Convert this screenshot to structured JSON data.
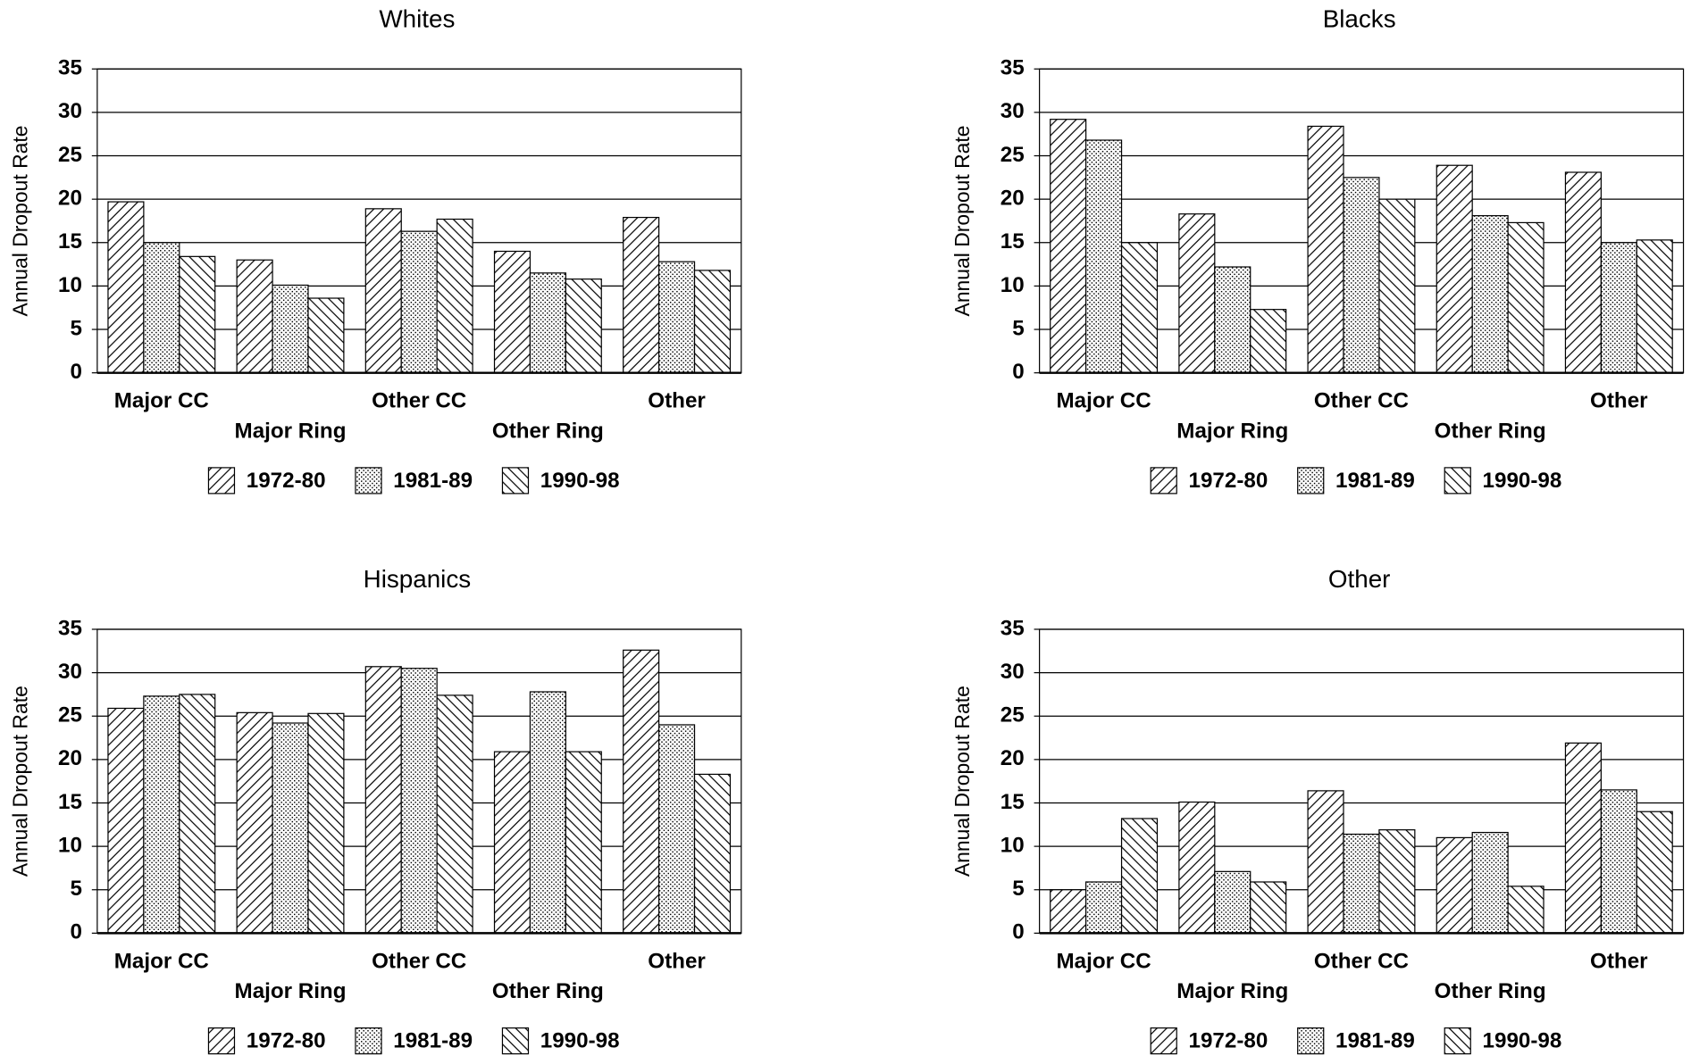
{
  "chart_data": [
    {
      "type": "bar",
      "title": "Whites",
      "y_label": "Annual Dropout Rate",
      "categories": [
        "Major CC",
        "Major Ring",
        "Other CC",
        "Other Ring",
        "Other"
      ],
      "series": [
        {
          "name": "1972-80",
          "pattern": "forward-hatch",
          "color": "#000000",
          "values": [
            19.7,
            13,
            18.9,
            14,
            17.9
          ]
        },
        {
          "name": "1981-89",
          "pattern": "dots",
          "color": "#000000",
          "values": [
            15,
            10.1,
            16.3,
            11.5,
            12.8
          ]
        },
        {
          "name": "1990-98",
          "pattern": "back-hatch",
          "color": "#000000",
          "values": [
            13.4,
            8.6,
            17.7,
            10.8,
            11.8
          ]
        }
      ],
      "ylim": [
        0,
        35
      ],
      "yticks": [
        0,
        5,
        10,
        15,
        20,
        25,
        30,
        35
      ],
      "grid": true
    },
    {
      "type": "bar",
      "title": "Blacks",
      "y_label": "Annual Dropout Rate",
      "categories": [
        "Major CC",
        "Major Ring",
        "Other CC",
        "Other Ring",
        "Other"
      ],
      "series": [
        {
          "name": "1972-80",
          "pattern": "forward-hatch",
          "color": "#000000",
          "values": [
            29.2,
            18.3,
            28.4,
            23.9,
            23.1
          ]
        },
        {
          "name": "1981-89",
          "pattern": "dots",
          "color": "#000000",
          "values": [
            26.8,
            12.2,
            22.5,
            18.1,
            15
          ]
        },
        {
          "name": "1990-98",
          "pattern": "back-hatch",
          "color": "#000000",
          "values": [
            15,
            7.3,
            20,
            17.3,
            15.3
          ]
        }
      ],
      "ylim": [
        0,
        35
      ],
      "yticks": [
        0,
        5,
        10,
        15,
        20,
        25,
        30,
        35
      ],
      "grid": true
    },
    {
      "type": "bar",
      "title": "Hispanics",
      "y_label": "Annual Dropout Rate",
      "categories": [
        "Major CC",
        "Major Ring",
        "Other CC",
        "Other Ring",
        "Other"
      ],
      "series": [
        {
          "name": "1972-80",
          "pattern": "forward-hatch",
          "color": "#000000",
          "values": [
            25.9,
            25.4,
            30.7,
            20.9,
            32.6
          ]
        },
        {
          "name": "1981-89",
          "pattern": "dots",
          "color": "#000000",
          "values": [
            27.3,
            24.2,
            30.5,
            27.8,
            24
          ]
        },
        {
          "name": "1990-98",
          "pattern": "back-hatch",
          "color": "#000000",
          "values": [
            27.5,
            25.3,
            27.4,
            20.9,
            18.3
          ]
        }
      ],
      "ylim": [
        0,
        35
      ],
      "yticks": [
        0,
        5,
        10,
        15,
        20,
        25,
        30,
        35
      ],
      "grid": true
    },
    {
      "type": "bar",
      "title": "Other",
      "y_label": "Annual Dropout Rate",
      "categories": [
        "Major CC",
        "Major Ring",
        "Other CC",
        "Other Ring",
        "Other"
      ],
      "series": [
        {
          "name": "1972-80",
          "pattern": "forward-hatch",
          "color": "#000000",
          "values": [
            5,
            15.1,
            16.4,
            11,
            21.9
          ]
        },
        {
          "name": "1981-89",
          "pattern": "dots",
          "color": "#000000",
          "values": [
            5.9,
            7.1,
            11.4,
            11.6,
            16.5
          ]
        },
        {
          "name": "1990-98",
          "pattern": "back-hatch",
          "color": "#000000",
          "values": [
            13.2,
            5.9,
            11.9,
            5.4,
            14
          ]
        }
      ],
      "ylim": [
        0,
        35
      ],
      "yticks": [
        0,
        5,
        10,
        15,
        20,
        25,
        30,
        35
      ],
      "grid": true
    }
  ]
}
